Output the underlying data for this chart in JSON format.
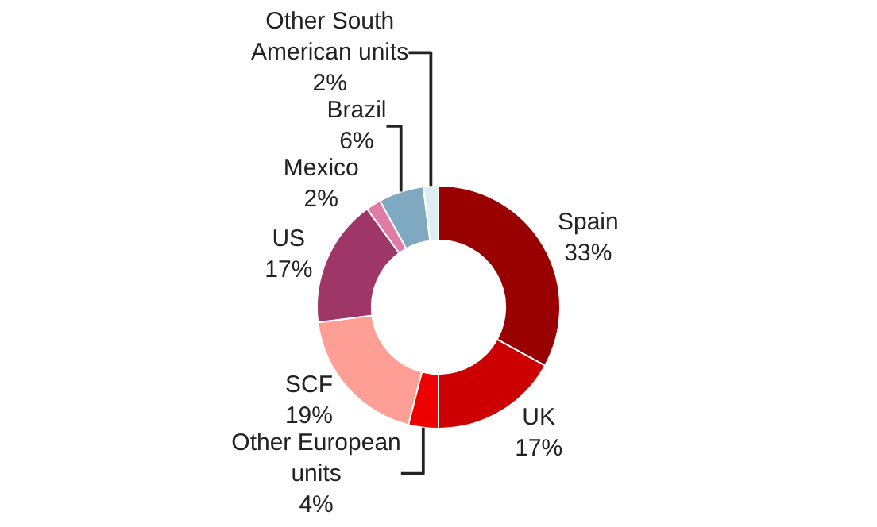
{
  "chart_data": {
    "type": "donut",
    "categories": [
      "Spain",
      "UK",
      "Other European\nunits",
      "SCF",
      "US",
      "Mexico",
      "Brazil",
      "Other South\nAmerican units"
    ],
    "values": [
      33,
      17,
      4,
      19,
      17,
      2,
      6,
      2
    ],
    "value_labels": [
      "33%",
      "17%",
      "4%",
      "19%",
      "17%",
      "2%",
      "6%",
      "2%"
    ],
    "colors": [
      "#990000",
      "#cc0000",
      "#ee0000",
      "#ff9e94",
      "#9e3667",
      "#e07ba6",
      "#7ea9c1",
      "#deedf2"
    ],
    "legend": false
  }
}
